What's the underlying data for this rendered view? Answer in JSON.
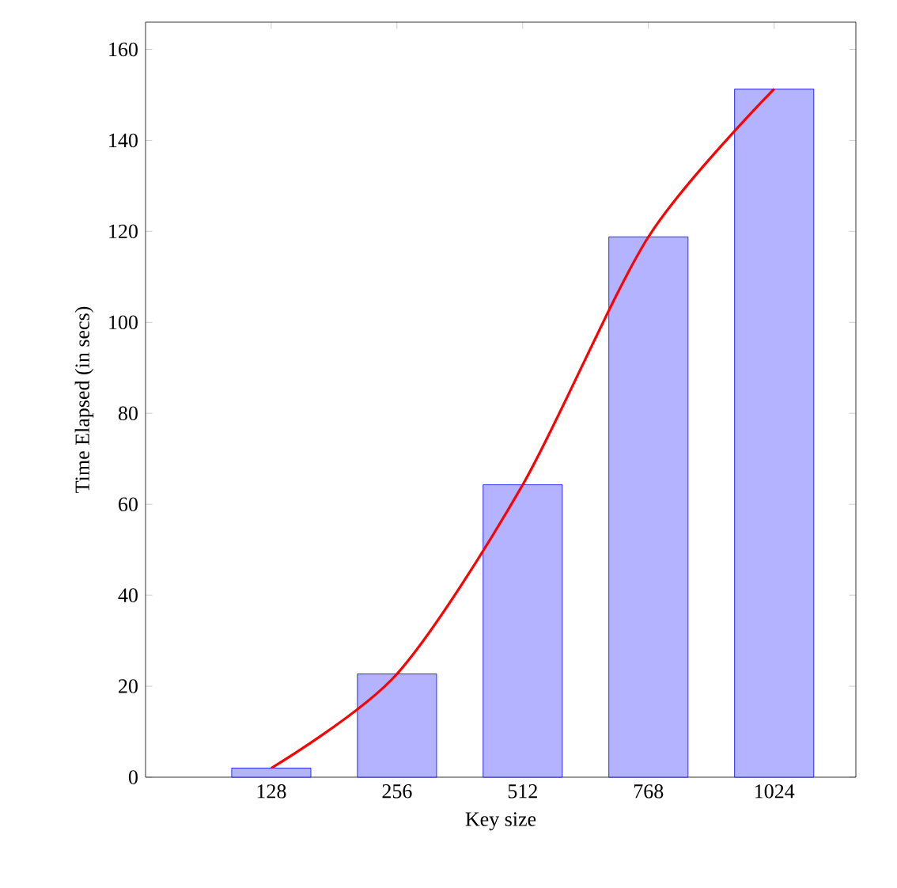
{
  "chart_data": {
    "type": "bar",
    "xlabel": "Key size",
    "ylabel": "Time Elapsed (in secs)",
    "categories": [
      "128",
      "256",
      "512",
      "768",
      "1024"
    ],
    "series": [
      {
        "color": "#b3b3ff",
        "values": [
          2,
          22.7,
          64.3,
          118.8,
          151.3
        ]
      },
      {
        "type": "line",
        "color": "#ff0000",
        "values": [
          2,
          22.7,
          64.3,
          118.8,
          151.3
        ]
      }
    ],
    "ylim": [
      0,
      166
    ],
    "yticks": [
      0,
      20,
      40,
      60,
      80,
      100,
      120,
      140,
      160
    ]
  }
}
